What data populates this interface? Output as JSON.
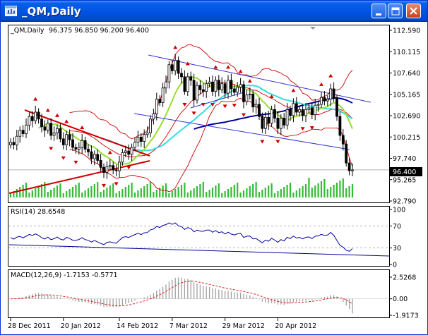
{
  "window": {
    "title": "_QM,Daily",
    "icon": "chart-window-icon",
    "buttons": [
      "minimize",
      "maximize",
      "close"
    ]
  },
  "price_panel": {
    "symbol_line": "_QM,Daily",
    "ohlc": "96.375 96.850 96.200 96.400",
    "current_price": "96.400",
    "y_ticks": [
      "112.590",
      "110.115",
      "107.640",
      "105.165",
      "102.690",
      "100.215",
      "97.740",
      "95.265",
      "92.790"
    ]
  },
  "rsi_panel": {
    "label": "RSI(14) 28.6548",
    "y_ticks": [
      "100",
      "70",
      "30",
      "0"
    ]
  },
  "macd_panel": {
    "label": "MACD(12,26,9) -1.7153 -0.5771",
    "y_ticks": [
      "2.5268",
      "0.00",
      "-1.9173"
    ]
  },
  "time_axis": {
    "labels": [
      "28 Dec 2011",
      "20 Jan 2012",
      "14 Feb 2012",
      "7 Mar 2012",
      "29 Mar 2012",
      "20 Apr 2012"
    ]
  },
  "colors": {
    "title_bar": "#0054e3",
    "bollinger": "#cc0000",
    "ma_fast": "#99dd33",
    "ma_mid": "#33dddd",
    "ma_slow": "#000099",
    "trend_lines_red": "#cc0000",
    "trend_lines_blue": "#3333cc",
    "volume": "#33bb33",
    "macd_signal": "#dd2222"
  },
  "chart_data": [
    {
      "type": "candlestick",
      "title": "_QM,Daily",
      "x": [
        "28 Dec 2011",
        "20 Jan 2012",
        "14 Feb 2012",
        "7 Mar 2012",
        "29 Mar 2012",
        "20 Apr 2012"
      ],
      "ylim": [
        92.79,
        112.59
      ],
      "last_ohlc": {
        "open": 96.375,
        "high": 96.85,
        "low": 96.2,
        "close": 96.4
      },
      "closes": [
        99.6,
        99.3,
        100.3,
        101.0,
        100.6,
        101.6,
        102.6,
        102.1,
        103.1,
        102.3,
        101.4,
        101.0,
        101.8,
        100.4,
        100.7,
        101.2,
        100.0,
        99.3,
        100.5,
        99.9,
        99.0,
        98.8,
        99.0,
        99.8,
        98.8,
        98.5,
        97.7,
        98.2,
        97.5,
        96.7,
        96.1,
        96.8,
        96.9,
        96.4,
        96.3,
        97.3,
        98.4,
        98.6,
        98.2,
        99.0,
        99.6,
        100.2,
        99.7,
        100.5,
        100.7,
        102.3,
        102.9,
        104.6,
        104.2,
        105.9,
        106.6,
        108.6,
        107.9,
        109.1,
        107.6,
        107.2,
        105.5,
        107.2,
        106.8,
        104.5,
        106.2,
        105.7,
        105.5,
        106.4,
        106.6,
        105.5,
        106.8,
        105.7,
        106.4,
        105.3,
        106.8,
        105.8,
        105.4,
        106.0,
        106.3,
        104.3,
        105.1,
        105.2,
        103.7,
        104.0,
        102.6,
        101.2,
        102.5,
        101.8,
        103.4,
        102.4,
        101.2,
        102.4,
        101.6,
        103.4,
        102.7,
        104.1,
        103.1,
        103.4,
        102.7,
        103.4,
        103.6,
        102.8,
        103.9,
        104.0,
        104.8,
        104.4,
        104.6,
        105.8,
        104.7,
        102.6,
        100.4,
        99.4,
        97.2,
        96.3,
        96.4
      ]
    },
    {
      "type": "line",
      "title": "RSI(14) 28.6548",
      "ylim": [
        0,
        100
      ],
      "levels": [
        70,
        30
      ],
      "values": [
        48.8,
        46.1,
        49.8,
        50.9,
        48.4,
        51.3,
        54.6,
        52.8,
        55.5,
        52.9,
        48.6,
        46.3,
        49.8,
        45.1,
        46.9,
        49.9,
        46.2,
        44.5,
        49.3,
        47.2,
        44.1,
        44.1,
        45.3,
        48.7,
        45.2,
        43.8,
        40.8,
        43.5,
        40.9,
        38.2,
        36.0,
        40.1,
        41.2,
        39.5,
        38.6,
        44.0,
        49.1,
        50.6,
        49.1,
        52.1,
        54.4,
        56.7,
        54.3,
        57.6,
        58.1,
        63.0,
        64.4,
        69.0,
        67.2,
        71.0,
        72.4,
        75.8,
        72.9,
        75.5,
        70.2,
        68.9,
        63.6,
        66.9,
        65.6,
        59.2,
        62.5,
        60.7,
        60.2,
        62.4,
        62.6,
        58.6,
        61.7,
        57.9,
        59.3,
        55.4,
        58.7,
        55.2,
        53.6,
        55.8,
        56.5,
        49.1,
        51.4,
        51.7,
        46.5,
        47.3,
        43.2,
        39.2,
        44.3,
        42.3,
        47.6,
        44.2,
        40.4,
        45.2,
        42.8,
        49.3,
        47.0,
        51.6,
        48.1,
        49.1,
        46.6,
        49.4,
        50.1,
        47.1,
        51.3,
        51.9,
        54.7,
        52.8,
        53.4,
        58.2,
        53.1,
        43.6,
        34.8,
        31.5,
        25.9,
        24.0,
        28.7
      ]
    },
    {
      "type": "bar",
      "title": "MACD(12,26,9) -1.7153 -0.5771",
      "ylim": [
        -1.9173,
        2.5268
      ],
      "values": [
        0.0,
        -0.02,
        0.05,
        0.14,
        0.18,
        0.3,
        0.45,
        0.52,
        0.65,
        0.68,
        0.6,
        0.5,
        0.5,
        0.38,
        0.3,
        0.27,
        0.16,
        0.03,
        0.01,
        -0.06,
        -0.18,
        -0.29,
        -0.35,
        -0.35,
        -0.42,
        -0.49,
        -0.6,
        -0.63,
        -0.7,
        -0.81,
        -0.93,
        -0.95,
        -0.94,
        -0.97,
        -0.98,
        -0.9,
        -0.74,
        -0.59,
        -0.5,
        -0.36,
        -0.21,
        -0.05,
        0.04,
        0.17,
        0.28,
        0.49,
        0.69,
        0.97,
        1.14,
        1.41,
        1.67,
        2.02,
        2.22,
        2.45,
        2.5,
        2.48,
        2.32,
        2.3,
        2.2,
        1.91,
        1.8,
        1.65,
        1.5,
        1.44,
        1.39,
        1.23,
        1.2,
        1.08,
        1.03,
        0.91,
        0.92,
        0.85,
        0.76,
        0.74,
        0.73,
        0.55,
        0.48,
        0.41,
        0.24,
        0.13,
        -0.07,
        -0.33,
        -0.42,
        -0.54,
        -0.5,
        -0.55,
        -0.68,
        -0.66,
        -0.72,
        -0.59,
        -0.55,
        -0.4,
        -0.37,
        -0.31,
        -0.31,
        -0.23,
        -0.16,
        -0.16,
        -0.06,
        0.03,
        0.15,
        0.2,
        0.26,
        0.41,
        0.43,
        0.28,
        -0.03,
        -0.35,
        -0.79,
        -1.2,
        -1.72
      ],
      "signal": [
        0.0,
        0.0,
        0.01,
        0.04,
        0.07,
        0.12,
        0.19,
        0.26,
        0.34,
        0.41,
        0.45,
        0.46,
        0.47,
        0.45,
        0.42,
        0.39,
        0.34,
        0.28,
        0.22,
        0.17,
        0.1,
        0.02,
        -0.05,
        -0.11,
        -0.17,
        -0.24,
        -0.31,
        -0.38,
        -0.44,
        -0.52,
        -0.6,
        -0.67,
        -0.72,
        -0.77,
        -0.81,
        -0.83,
        -0.81,
        -0.76,
        -0.71,
        -0.64,
        -0.55,
        -0.45,
        -0.35,
        -0.25,
        -0.14,
        0.0,
        0.14,
        0.31,
        0.48,
        0.66,
        0.86,
        1.09,
        1.31,
        1.54,
        1.73,
        1.88,
        1.97,
        2.04,
        2.07,
        2.04,
        1.99,
        1.92,
        1.84,
        1.76,
        1.69,
        1.6,
        1.52,
        1.43,
        1.35,
        1.26,
        1.19,
        1.12,
        1.05,
        0.98,
        0.93,
        0.85,
        0.77,
        0.7,
        0.61,
        0.51,
        0.4,
        0.25,
        0.11,
        -0.02,
        -0.11,
        -0.2,
        -0.3,
        -0.37,
        -0.44,
        -0.47,
        -0.48,
        -0.47,
        -0.45,
        -0.42,
        -0.4,
        -0.37,
        -0.33,
        -0.29,
        -0.25,
        -0.19,
        -0.12,
        -0.05,
        0.01,
        0.09,
        0.16,
        0.18,
        0.14,
        0.04,
        -0.13,
        -0.34,
        -0.58
      ]
    }
  ]
}
